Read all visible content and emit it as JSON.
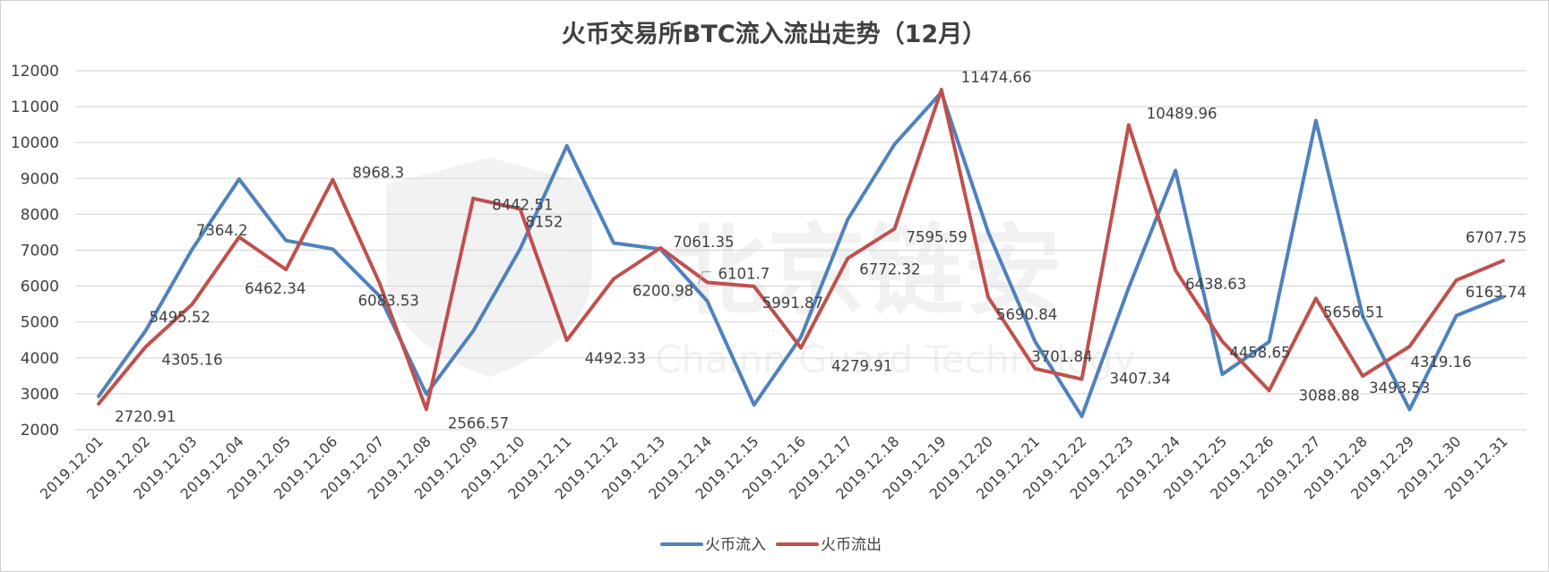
{
  "chart_data": {
    "type": "line",
    "title": "火币交易所BTC流入流出走势（12月）",
    "xlabel": "",
    "ylabel": "",
    "ylim": [
      2000,
      12000
    ],
    "y_ticks": [
      2000,
      3000,
      4000,
      5000,
      6000,
      7000,
      8000,
      9000,
      10000,
      11000,
      12000
    ],
    "grid": true,
    "legend_position": "bottom",
    "categories": [
      "2019.12.01",
      "2019.12.02",
      "2019.12.03",
      "2019.12.04",
      "2019.12.05",
      "2019.12.06",
      "2019.12.07",
      "2019.12.08",
      "2019.12.09",
      "2019.12.10",
      "2019.12.11",
      "2019.12.12",
      "2019.12.13",
      "2019.12.14",
      "2019.12.15",
      "2019.12.16",
      "2019.12.17",
      "2019.12.18",
      "2019.12.19",
      "2019.12.20",
      "2019.12.21",
      "2019.12.22",
      "2019.12.23",
      "2019.12.24",
      "2019.12.25",
      "2019.12.26",
      "2019.12.27",
      "2019.12.28",
      "2019.12.29",
      "2019.12.30",
      "2019.12.31"
    ],
    "series": [
      {
        "name": "火币流入",
        "color": "#4f81bd",
        "values": [
          2930,
          4750,
          7030,
          8980,
          7270,
          7030,
          5720,
          2990,
          4750,
          7030,
          9910,
          7200,
          7030,
          5580,
          2690,
          4580,
          7860,
          9950,
          11400,
          7500,
          4460,
          2370,
          5950,
          9220,
          3540,
          4450,
          10610,
          5160,
          2560,
          5180,
          5700
        ]
      },
      {
        "name": "火币流出",
        "color": "#c0504d",
        "values": [
          2720.91,
          4305.16,
          5495.52,
          7364.2,
          6462.34,
          8968.3,
          6083.53,
          2566.57,
          8442.51,
          8152,
          4492.33,
          6200.98,
          7061.35,
          6101.7,
          5991.87,
          4279.91,
          6772.32,
          7595.59,
          11474.66,
          5690.84,
          3701.84,
          3407.34,
          10489.96,
          6438.63,
          4458.65,
          3088.88,
          5656.51,
          3493.53,
          4319.16,
          6163.74,
          6707.75
        ],
        "labels": [
          "2720.91",
          "4305.16",
          "5495.52",
          "7364.2",
          "6462.34",
          "8968.3",
          "6083.53",
          "2566.57",
          "8442.51",
          "8152",
          "4492.33",
          "6200.98",
          "7061.35",
          "6101.7",
          "5991.87",
          "4279.91",
          "6772.32",
          "7595.59",
          "11474.66",
          "5690.84",
          "3701.84",
          "3407.34",
          "10489.96",
          "6438.63",
          "4458.65",
          "3088.88",
          "5656.51",
          "3493.53",
          "4319.16",
          "6163.74",
          "6707.75"
        ]
      }
    ]
  },
  "watermark": {
    "logo_icon": "shield-logo-icon",
    "text_cn": "北京链安",
    "text_en": "Chainn Guard Technology"
  }
}
